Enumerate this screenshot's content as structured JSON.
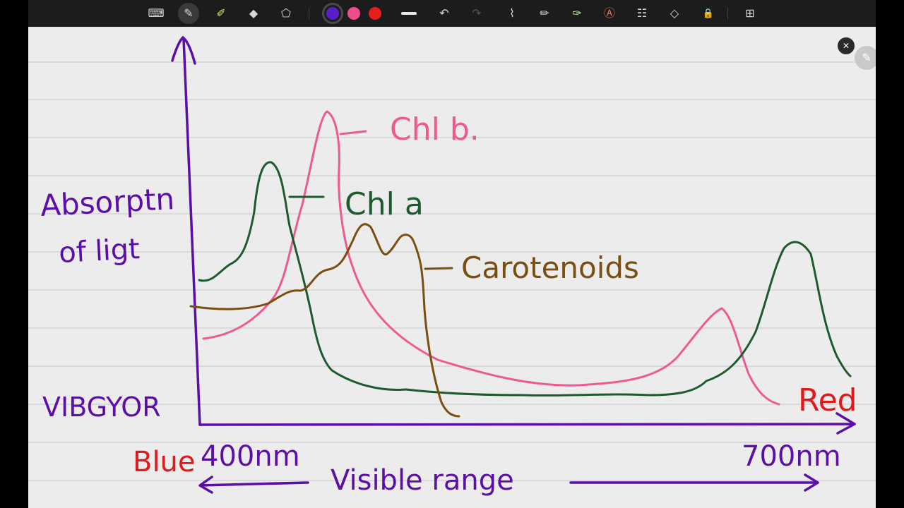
{
  "toolbar": {
    "tools": [
      {
        "name": "keyboard-icon",
        "glyph": "⌨"
      },
      {
        "name": "pen-icon",
        "glyph": "✎"
      },
      {
        "name": "highlighter-icon",
        "glyph": "✐"
      },
      {
        "name": "eraser-icon",
        "glyph": "◆"
      },
      {
        "name": "lasso-icon",
        "glyph": "⬠"
      },
      {
        "name": "undo-icon",
        "glyph": "↶"
      },
      {
        "name": "redo-icon",
        "glyph": "↷"
      },
      {
        "name": "shape-pen-icon",
        "glyph": "⌇"
      },
      {
        "name": "pencil-icon",
        "glyph": "✏"
      },
      {
        "name": "marker-icon",
        "glyph": "✑"
      },
      {
        "name": "text-style-icon",
        "glyph": "Ⓐ"
      },
      {
        "name": "text-box-icon",
        "glyph": "☷"
      },
      {
        "name": "shapes-icon",
        "glyph": "◇"
      },
      {
        "name": "lock-icon",
        "glyph": "🔒"
      },
      {
        "name": "more-apps-icon",
        "glyph": "⊞"
      }
    ],
    "colors": {
      "purple": "#5a1ec8",
      "pink": "#f04c8c",
      "red": "#e61e1e"
    },
    "collapse_glyph": "✕",
    "pen_float_glyph": "✎"
  },
  "drawing": {
    "ink_colors": {
      "axis": "#5b0fa8",
      "chl_a": "#1d5b2e",
      "chl_b": "#ee5a90",
      "carotenoids": "#7a4e10",
      "red_text": "#e01a1a"
    },
    "labels": {
      "y_axis_line1": "Absorptn",
      "y_axis_line2": "of ligt",
      "chl_b": "Chl b.",
      "chl_a": "Chl a",
      "carotenoids": "Carotenoids",
      "vibgyor": "VIBGYOR",
      "blue": "Blue",
      "red": "Red",
      "x_start": "400nm",
      "x_end": "700nm",
      "visible_range": "Visible range"
    }
  }
}
